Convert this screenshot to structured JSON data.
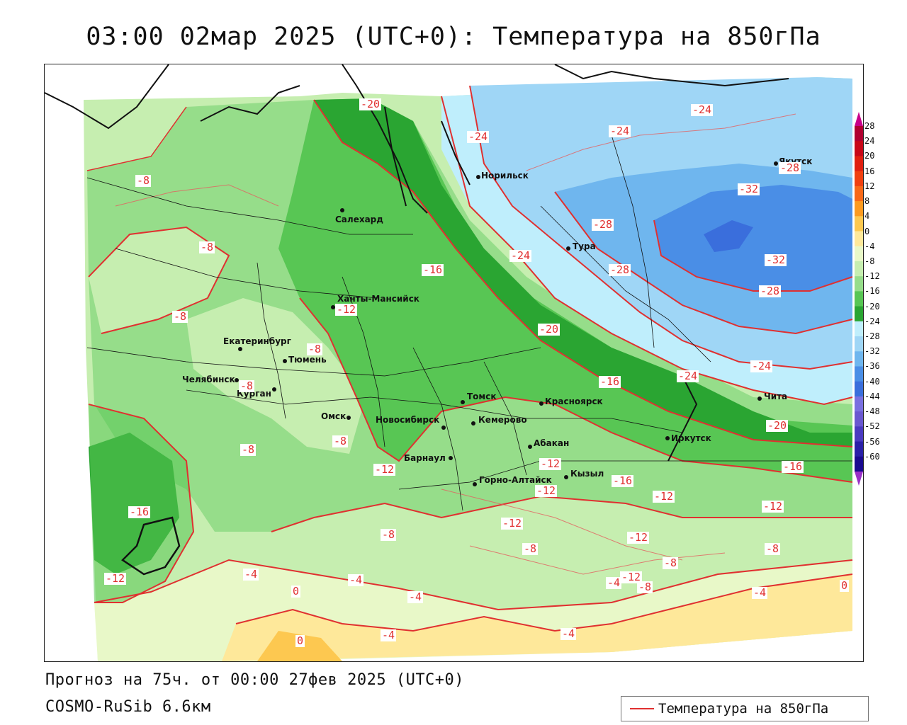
{
  "title": "03:00 02мар 2025 (UTC+0): Температура на 850гПа",
  "footer": {
    "forecast": "Прогноз на 75ч. от 00:00 27фев 2025 (UTC+0)",
    "model": "COSMO-RuSib 6.6км"
  },
  "legend": {
    "label": "Температура на 850гПа",
    "line_color": "#e03030"
  },
  "colorbar": {
    "labels": [
      "28",
      "24",
      "20",
      "16",
      "12",
      "8",
      "4",
      "0",
      "-4",
      "-8",
      "-12",
      "-16",
      "-20",
      "-24",
      "-28",
      "-32",
      "-36",
      "-40",
      "-44",
      "-48",
      "-52",
      "-56",
      "-60"
    ],
    "colors": [
      "#b00030",
      "#c80818",
      "#e02010",
      "#f04010",
      "#f86818",
      "#fc9a20",
      "#fdc850",
      "#fee89a",
      "#e8f8c8",
      "#c6eeb0",
      "#96dd8a",
      "#58c654",
      "#2aa532",
      "#bfeefc",
      "#9fd6f6",
      "#6fb6ee",
      "#4a8ee6",
      "#3a6edc",
      "#7a70e0",
      "#6a58d0",
      "#4a3ac0",
      "#2a20a8",
      "#1a0a90"
    ]
  },
  "cities": [
    {
      "name": "Норильск"
    },
    {
      "name": "Якутск"
    },
    {
      "name": "Салехард"
    },
    {
      "name": "Тура"
    },
    {
      "name": "Ханты-Мансийск"
    },
    {
      "name": "Екатеринбург"
    },
    {
      "name": "Тюмень"
    },
    {
      "name": "Челябинск"
    },
    {
      "name": "Курган"
    },
    {
      "name": "Омск"
    },
    {
      "name": "Новосибирск"
    },
    {
      "name": "Томск"
    },
    {
      "name": "Красноярск"
    },
    {
      "name": "Кемерово"
    },
    {
      "name": "Абакан"
    },
    {
      "name": "Барнаул"
    },
    {
      "name": "Горно-Алтайск"
    },
    {
      "name": "Кызыл"
    },
    {
      "name": "Иркутск"
    },
    {
      "name": "Чита"
    }
  ],
  "contour_labels": [
    "-20",
    "-24",
    "-24",
    "-24",
    "-28",
    "-32",
    "-28",
    "-24",
    "-28",
    "-32",
    "-28",
    "-8",
    "-8",
    "-8",
    "-16",
    "-20",
    "-16",
    "-24",
    "-24",
    "-20",
    "-8",
    "-12",
    "-8",
    "-8",
    "-8",
    "-12",
    "-12",
    "-12",
    "-16",
    "-16",
    "-12",
    "-12",
    "-16",
    "-12",
    "-8",
    "-12",
    "-8",
    "-12",
    "-8",
    "-12",
    "-8",
    "-4",
    "-4",
    "0",
    "-4",
    "-4",
    "-4",
    "-8",
    "0",
    "-4",
    "-4",
    "0"
  ]
}
